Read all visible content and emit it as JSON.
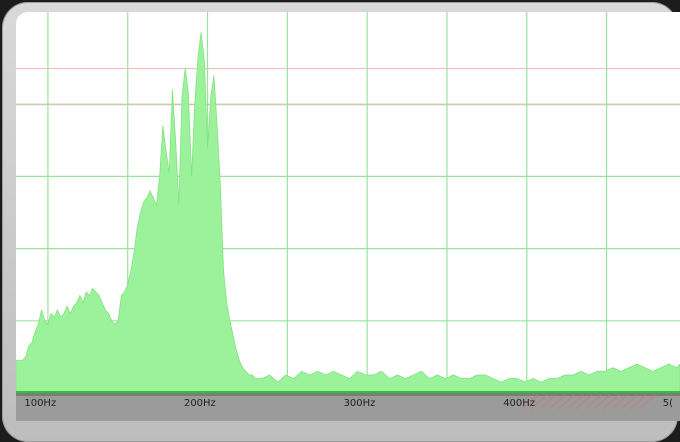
{
  "chart_data": {
    "type": "area",
    "title": "",
    "xlabel": "",
    "ylabel": "",
    "xlim": [
      86,
      502
    ],
    "ylim": [
      0,
      100
    ],
    "x_ticks": [
      {
        "value": 100,
        "label": "100Hz"
      },
      {
        "value": 200,
        "label": "200Hz"
      },
      {
        "value": 300,
        "label": "300Hz"
      },
      {
        "value": 400,
        "label": "400Hz"
      },
      {
        "value": 500,
        "label": "5("
      }
    ],
    "v_grid_x": [
      106,
      156,
      206,
      256,
      306,
      356,
      406,
      456
    ],
    "h_grid_y": [
      20,
      40,
      60,
      80
    ],
    "h_grid_red_y": [
      80,
      90
    ],
    "grid": true,
    "colors": {
      "fill": "#9cf29a",
      "stroke": "#82e283",
      "grid_green": "#9be39b",
      "grid_red": "#f2b8b8",
      "axis_band": "#9b9b9b",
      "baseline": "#31c134"
    },
    "series": [
      {
        "x": [
          86,
          88,
          90,
          92,
          94,
          96,
          98,
          100,
          102,
          104,
          106,
          108,
          110,
          112,
          114,
          116,
          118,
          120,
          122,
          124,
          126,
          128,
          130,
          132,
          134,
          136,
          138,
          140,
          142,
          144,
          146,
          148,
          150,
          152,
          154,
          156,
          158,
          160,
          162,
          164,
          166,
          168,
          170,
          172,
          174,
          176,
          178,
          180,
          182,
          184,
          186,
          188,
          190,
          192,
          194,
          196,
          198,
          200,
          202,
          204,
          206,
          208,
          210,
          212,
          214,
          216,
          218,
          220,
          222,
          224,
          226,
          228,
          230,
          232,
          234,
          236,
          240,
          245,
          250,
          255,
          260,
          265,
          270,
          275,
          280,
          285,
          290,
          295,
          300,
          305,
          310,
          315,
          320,
          325,
          330,
          335,
          340,
          345,
          350,
          355,
          360,
          365,
          370,
          375,
          380,
          385,
          390,
          395,
          400,
          405,
          410,
          415,
          420,
          425,
          430,
          435,
          440,
          445,
          450,
          455,
          460,
          465,
          470,
          475,
          480,
          485,
          490,
          495,
          500,
          502
        ],
        "values": [
          9,
          9,
          9,
          10,
          13,
          14,
          17,
          19,
          23,
          20,
          19,
          22,
          21,
          23,
          21,
          22,
          24,
          22,
          24,
          25,
          27,
          25,
          28,
          27,
          29,
          28,
          27,
          25,
          23,
          22,
          20,
          19,
          20,
          27,
          28,
          30,
          34,
          39,
          46,
          50,
          53,
          54,
          56,
          54,
          52,
          60,
          74,
          67,
          61,
          84,
          70,
          52,
          82,
          90,
          83,
          60,
          80,
          93,
          100,
          92,
          68,
          82,
          88,
          74,
          58,
          34,
          25,
          20,
          16,
          12,
          9,
          7,
          6,
          5,
          5,
          4,
          4,
          5,
          3,
          5,
          4,
          6,
          5,
          6,
          5,
          6,
          5,
          4,
          6,
          5,
          5,
          6,
          4,
          5,
          4,
          5,
          6,
          4,
          5,
          4,
          5,
          4,
          4,
          5,
          5,
          4,
          3,
          4,
          4,
          3,
          4,
          3,
          4,
          4,
          5,
          5,
          6,
          5,
          6,
          6,
          7,
          6,
          7,
          8,
          7,
          6,
          7,
          8,
          7,
          8
        ]
      }
    ]
  }
}
